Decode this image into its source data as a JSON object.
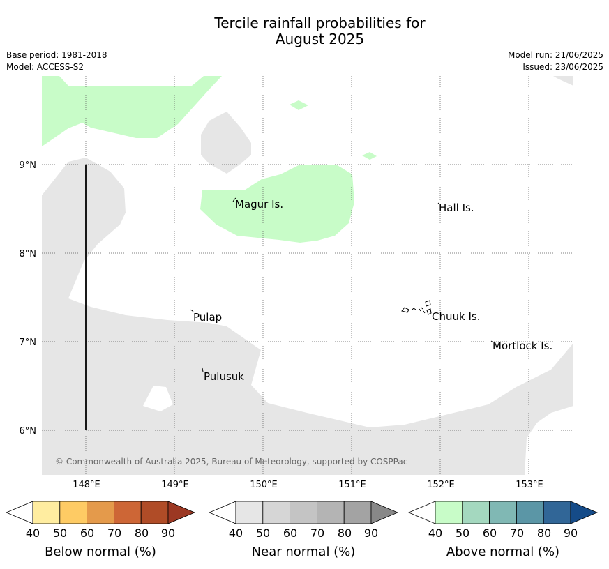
{
  "title_line1": "Tercile rainfall probabilities for",
  "title_line2": "August 2025",
  "meta_left": [
    "Base period: 1981-2018",
    "Model: ACCESS-S2"
  ],
  "meta_right": [
    "Model run: 21/06/2025",
    "Issued: 23/06/2025"
  ],
  "map": {
    "lon_labels": [
      "148°E",
      "149°E",
      "150°E",
      "151°E",
      "152°E",
      "153°E"
    ],
    "lat_labels": [
      "9°N",
      "8°N",
      "7°N",
      "6°N"
    ],
    "places": [
      "Magur Is.",
      "Hall Is.",
      "Pulap",
      "Chuuk Is.",
      "Mortlock Is.",
      "Pulusuk"
    ],
    "copyright": "© Commonwealth of Australia 2025, Bureau of Meteorology, supported by COSPPac",
    "colors": {
      "near_normal_fill": "#e6e6e6",
      "above_normal_fill": "#c8fcc8",
      "gridline": "#555555"
    }
  },
  "colorbars": [
    {
      "label": "Below normal (%)",
      "ticks": [
        "40",
        "50",
        "60",
        "70",
        "80",
        "90"
      ],
      "colors": [
        "#ffffff",
        "#ffeda0",
        "#fecb64",
        "#e49a4b",
        "#cd6636",
        "#b04c27",
        "#9c3823"
      ]
    },
    {
      "label": "Near normal (%)",
      "ticks": [
        "40",
        "50",
        "60",
        "70",
        "80",
        "90"
      ],
      "colors": [
        "#ffffff",
        "#e6e6e6",
        "#d6d6d6",
        "#c4c4c4",
        "#b4b4b4",
        "#a3a3a3",
        "#888888"
      ]
    },
    {
      "label": "Above normal (%)",
      "ticks": [
        "40",
        "50",
        "60",
        "70",
        "80",
        "90"
      ],
      "colors": [
        "#ffffff",
        "#c8fcc8",
        "#a4d8bf",
        "#80b8b4",
        "#5b96a6",
        "#316697",
        "#154b88"
      ]
    }
  ]
}
